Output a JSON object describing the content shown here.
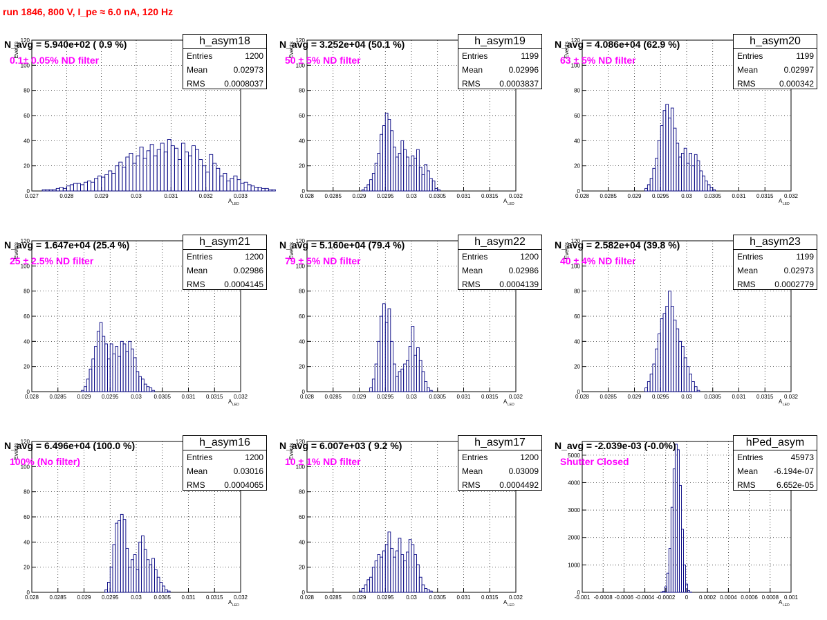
{
  "page_title": "run 1846,   800 V, I_pe ≈ 6.0 nA, 120 Hz",
  "colors": {
    "title": "#ff0000",
    "note": "#ff00ff",
    "hist": "#000080",
    "grid": "#000000"
  },
  "chart_data": [
    {
      "type": "bar",
      "name": "h_asym18",
      "ylabel": "Events",
      "xlabel": "A",
      "xlabel_sub": "LED",
      "n_avg_text": "N_avg = 5.940e+02 ( 0.9 %)",
      "note": "0.1± 0.05% ND filter",
      "stats": {
        "Entries": "1200",
        "Mean": "0.02973",
        "RMS": "0.0008037"
      },
      "xlim": [
        0.027,
        0.033
      ],
      "ylim": [
        0,
        120
      ],
      "xticks": [
        "0.027",
        "0.028",
        "0.029",
        "0.03",
        "0.031",
        "0.032",
        "0.033"
      ],
      "yticks": [
        "0",
        "20",
        "40",
        "60",
        "80",
        "100",
        "120"
      ],
      "bin_start": 0.0272,
      "bin_width": 0.0001,
      "values": [
        0,
        1,
        1,
        1,
        1,
        2,
        3,
        2,
        4,
        5,
        6,
        6,
        5,
        7,
        8,
        7,
        10,
        12,
        11,
        13,
        16,
        14,
        20,
        23,
        19,
        27,
        30,
        22,
        28,
        35,
        26,
        32,
        37,
        28,
        33,
        38,
        31,
        41,
        36,
        34,
        25,
        38,
        31,
        28,
        36,
        33,
        25,
        20,
        15,
        29,
        22,
        18,
        12,
        14,
        8,
        10,
        12,
        9,
        6,
        7,
        5,
        4,
        3,
        3,
        2,
        2,
        1,
        1,
        0
      ]
    },
    {
      "type": "bar",
      "name": "h_asym19",
      "ylabel": "Events",
      "xlabel": "A",
      "xlabel_sub": "LED",
      "n_avg_text": "N_avg = 3.252e+04 (50.1 %)",
      "note": "50 ± 5% ND filter",
      "stats": {
        "Entries": "1199",
        "Mean": "0.02996",
        "RMS": "0.0003837"
      },
      "xlim": [
        0.028,
        0.032
      ],
      "ylim": [
        0,
        120
      ],
      "xticks": [
        "0.028",
        "0.0285",
        "0.029",
        "0.0295",
        "0.03",
        "0.0305",
        "0.031",
        "0.0315",
        "0.032"
      ],
      "yticks": [
        "0",
        "20",
        "40",
        "60",
        "80",
        "100",
        "120"
      ],
      "bin_start": 0.02905,
      "bin_width": 5e-05,
      "values": [
        1,
        3,
        5,
        9,
        14,
        22,
        30,
        45,
        52,
        62,
        57,
        48,
        35,
        27,
        30,
        40,
        33,
        27,
        20,
        28,
        26,
        33,
        19,
        13,
        21,
        16,
        10,
        8,
        2,
        1
      ]
    },
    {
      "type": "bar",
      "name": "h_asym20",
      "ylabel": "Events",
      "xlabel": "A",
      "xlabel_sub": "LED",
      "n_avg_text": "N_avg = 4.086e+04 (62.9 %)",
      "note": "63 ± 5% ND filter",
      "stats": {
        "Entries": "1199",
        "Mean": "0.02997",
        "RMS": "0.000342"
      },
      "xlim": [
        0.028,
        0.032
      ],
      "ylim": [
        0,
        120
      ],
      "xticks": [
        "0.028",
        "0.0285",
        "0.029",
        "0.0295",
        "0.03",
        "0.0305",
        "0.031",
        "0.0315",
        "0.032"
      ],
      "yticks": [
        "0",
        "20",
        "40",
        "60",
        "80",
        "100",
        "120"
      ],
      "bin_start": 0.0292,
      "bin_width": 5e-05,
      "values": [
        2,
        5,
        10,
        18,
        26,
        40,
        52,
        64,
        69,
        58,
        66,
        50,
        38,
        27,
        30,
        34,
        22,
        30,
        20,
        29,
        24,
        16,
        12,
        8,
        5,
        3,
        1
      ]
    },
    {
      "type": "bar",
      "name": "h_asym21",
      "ylabel": "Events",
      "xlabel": "A",
      "xlabel_sub": "LED",
      "n_avg_text": "N_avg = 1.647e+04 (25.4 %)",
      "note": "25 ± 2.5% ND filter",
      "stats": {
        "Entries": "1200",
        "Mean": "0.02986",
        "RMS": "0.0004145"
      },
      "xlim": [
        0.028,
        0.032
      ],
      "ylim": [
        0,
        120
      ],
      "xticks": [
        "0.028",
        "0.0285",
        "0.029",
        "0.0295",
        "0.03",
        "0.0305",
        "0.031",
        "0.0315",
        "0.032"
      ],
      "yticks": [
        "0",
        "20",
        "40",
        "60",
        "80",
        "100",
        "120"
      ],
      "bin_start": 0.02895,
      "bin_width": 5e-05,
      "values": [
        1,
        4,
        10,
        18,
        26,
        36,
        48,
        55,
        44,
        38,
        26,
        38,
        30,
        36,
        28,
        40,
        38,
        32,
        40,
        34,
        27,
        16,
        12,
        10,
        6,
        4,
        3,
        1
      ]
    },
    {
      "type": "bar",
      "name": "h_asym22",
      "ylabel": "Events",
      "xlabel": "A",
      "xlabel_sub": "LED",
      "n_avg_text": "N_avg = 5.160e+04 (79.4 %)",
      "note": "79 ± 5% ND filter",
      "stats": {
        "Entries": "1200",
        "Mean": "0.02986",
        "RMS": "0.0004139"
      },
      "xlim": [
        0.028,
        0.032
      ],
      "ylim": [
        0,
        120
      ],
      "xticks": [
        "0.028",
        "0.0285",
        "0.029",
        "0.0295",
        "0.03",
        "0.0305",
        "0.031",
        "0.0315",
        "0.032"
      ],
      "yticks": [
        "0",
        "20",
        "40",
        "60",
        "80",
        "100",
        "120"
      ],
      "bin_start": 0.0292,
      "bin_width": 5e-05,
      "values": [
        3,
        10,
        22,
        40,
        60,
        70,
        55,
        66,
        40,
        22,
        12,
        16,
        18,
        22,
        25,
        36,
        52,
        29,
        35,
        25,
        16,
        8,
        3,
        1
      ]
    },
    {
      "type": "bar",
      "name": "h_asym23",
      "ylabel": "Events",
      "xlabel": "A",
      "xlabel_sub": "LED",
      "n_avg_text": "N_avg = 2.582e+04 (39.8 %)",
      "note": "40 ± 4% ND filter",
      "stats": {
        "Entries": "1199",
        "Mean": "0.02973",
        "RMS": "0.0002779"
      },
      "xlim": [
        0.028,
        0.032
      ],
      "ylim": [
        0,
        120
      ],
      "xticks": [
        "0.028",
        "0.0285",
        "0.029",
        "0.0295",
        "0.03",
        "0.0305",
        "0.031",
        "0.0315",
        "0.032"
      ],
      "yticks": [
        "0",
        "20",
        "40",
        "60",
        "80",
        "100",
        "120"
      ],
      "bin_start": 0.0292,
      "bin_width": 5e-05,
      "values": [
        3,
        8,
        14,
        22,
        34,
        46,
        58,
        62,
        68,
        80,
        68,
        57,
        50,
        40,
        36,
        27,
        20,
        14,
        8,
        4,
        1
      ]
    },
    {
      "type": "bar",
      "name": "h_asym16",
      "ylabel": "Events",
      "xlabel": "A",
      "xlabel_sub": "LED",
      "n_avg_text": "N_avg = 6.496e+04 (100.0 %)",
      "note": "100% (No filter)",
      "stats": {
        "Entries": "1200",
        "Mean": "0.03016",
        "RMS": "0.0004065"
      },
      "xlim": [
        0.028,
        0.032
      ],
      "ylim": [
        0,
        120
      ],
      "xticks": [
        "0.028",
        "0.0285",
        "0.029",
        "0.0295",
        "0.03",
        "0.0305",
        "0.031",
        "0.0315",
        "0.032"
      ],
      "yticks": [
        "0",
        "20",
        "40",
        "60",
        "80",
        "100",
        "120"
      ],
      "bin_start": 0.0294,
      "bin_width": 5e-05,
      "values": [
        2,
        8,
        20,
        38,
        55,
        57,
        62,
        58,
        35,
        20,
        26,
        30,
        18,
        40,
        45,
        34,
        26,
        22,
        27,
        18,
        12,
        8,
        5,
        2,
        1
      ]
    },
    {
      "type": "bar",
      "name": "h_asym17",
      "ylabel": "Events",
      "xlabel": "A",
      "xlabel_sub": "LED",
      "n_avg_text": "N_avg = 6.007e+03 ( 9.2 %)",
      "note": "10 ± 1% ND filter",
      "stats": {
        "Entries": "1200",
        "Mean": "0.03009",
        "RMS": "0.0004492"
      },
      "xlim": [
        0.028,
        0.032
      ],
      "ylim": [
        0,
        120
      ],
      "xticks": [
        "0.028",
        "0.0285",
        "0.029",
        "0.0295",
        "0.03",
        "0.0305",
        "0.031",
        "0.0315",
        "0.032"
      ],
      "yticks": [
        "0",
        "20",
        "40",
        "60",
        "80",
        "100",
        "120"
      ],
      "bin_start": 0.029,
      "bin_width": 5e-05,
      "values": [
        1,
        3,
        6,
        10,
        12,
        20,
        25,
        30,
        28,
        33,
        38,
        48,
        35,
        28,
        33,
        43,
        30,
        25,
        32,
        42,
        38,
        30,
        22,
        12,
        6,
        3,
        2,
        1
      ]
    },
    {
      "type": "bar",
      "name": "hPed_asym",
      "ylabel": "",
      "xlabel": "A",
      "xlabel_sub": "LED",
      "n_avg_text": "N_avg = -2.039e-03 (-0.0%)",
      "note": "Shutter Closed",
      "stats": {
        "Entries": "45973",
        "Mean": "-6.194e-07",
        "RMS": "6.652e-05"
      },
      "xlim": [
        -0.001,
        0.001
      ],
      "ylim": [
        0,
        5500
      ],
      "xticks": [
        "-0.001",
        "-0.0008",
        "-0.0006",
        "-0.0004",
        "-0.0002",
        "0",
        "0.0002",
        "0.0004",
        "0.0006",
        "0.0008",
        "0.001"
      ],
      "yticks": [
        "0",
        "1000",
        "2000",
        "3000",
        "4000",
        "5000"
      ],
      "bin_start": -0.00025,
      "bin_width": 2e-05,
      "values": [
        10,
        40,
        200,
        700,
        1600,
        3100,
        4500,
        5400,
        5200,
        3900,
        2300,
        1000,
        300,
        60,
        10
      ]
    }
  ]
}
